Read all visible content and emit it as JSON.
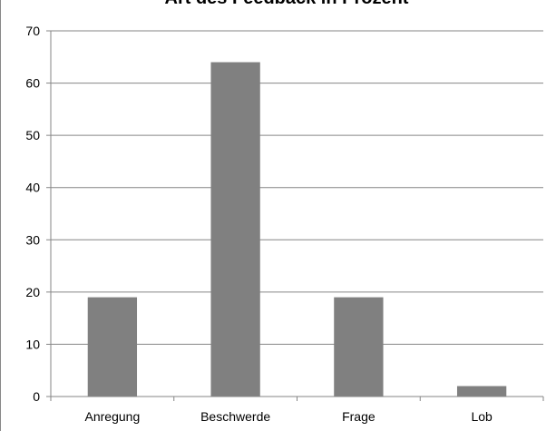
{
  "chart_data": {
    "type": "bar",
    "title": "Art des Feedback in Prozent",
    "categories": [
      "Anregung",
      "Beschwerde",
      "Frage",
      "Lob"
    ],
    "values": [
      19,
      64,
      19,
      2
    ],
    "ylim": [
      0,
      70
    ],
    "yticks": [
      0,
      10,
      20,
      30,
      40,
      50,
      60,
      70
    ],
    "grid": true,
    "legend": "none",
    "colors": {
      "bar": "#808080",
      "grid": "#868686",
      "axis": "#868686"
    }
  }
}
